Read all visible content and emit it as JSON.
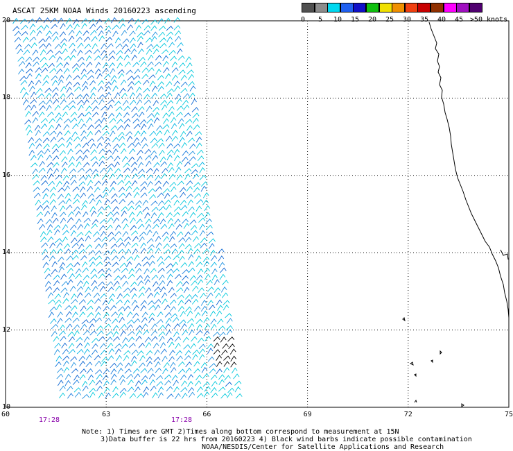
{
  "title": "ASCAT 25KM NOAA Winds 20160223 ascending",
  "legend": {
    "colors": [
      "#505050",
      "#8c8c8c",
      "#00d8f0",
      "#2060f0",
      "#1010c8",
      "#10c010",
      "#f0e000",
      "#f09000",
      "#f04010",
      "#c80000",
      "#903000",
      "#ff00ff",
      "#a010c0",
      "#500070"
    ],
    "ticks": [
      "0",
      "5",
      "10",
      "15",
      "20",
      "25",
      "30",
      "35",
      "40",
      "45",
      ">50 knots"
    ]
  },
  "axes": {
    "x_ticks": [
      "60",
      "63",
      "66",
      "69",
      "72",
      "75"
    ],
    "y_ticks": [
      "10",
      "12",
      "14",
      "16",
      "18",
      "20"
    ],
    "times": [
      "17:28",
      "17:28"
    ]
  },
  "notes": {
    "line1": "Note: 1) Times are GMT 2)Times along bottom correspond to measurement at 15N",
    "line2": "3)Data buffer is 22 hrs from 20160223 4) Black wind barbs indicate possible contamination",
    "line3": "NOAA/NESDIS/Center for Satellite Applications and Research"
  },
  "map": {
    "lon_range": [
      60,
      75
    ],
    "lat_range": [
      10,
      20
    ],
    "barb_colors": [
      "#00b4e6",
      "#1e90e0",
      "#0a64d2",
      "#00c8dc",
      "#1478dc",
      "#000000"
    ]
  }
}
